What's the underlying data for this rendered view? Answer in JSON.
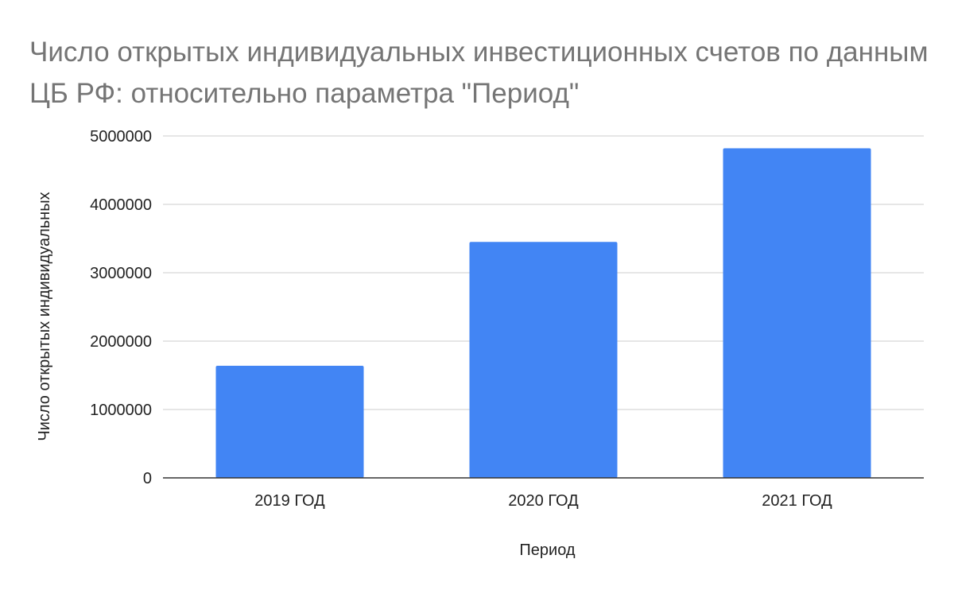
{
  "chart_data": {
    "type": "bar",
    "title": "Число открытых индивидуальных инвестиционных счетов по данным ЦБ РФ: относительно параметра \"Период\"",
    "xlabel": "Период",
    "ylabel": "Число открытых индивидуальных",
    "categories": [
      "2019 ГОД",
      "2020 ГОД",
      "2021 ГОД"
    ],
    "values": [
      1640000,
      3450000,
      4820000
    ],
    "ylim": [
      0,
      5000000
    ],
    "yticks": [
      0,
      1000000,
      2000000,
      3000000,
      4000000,
      5000000
    ],
    "grid": true,
    "legend": "none",
    "bar_color": "#4285f4",
    "grid_color": "#cccccc",
    "baseline_color": "#333333"
  }
}
